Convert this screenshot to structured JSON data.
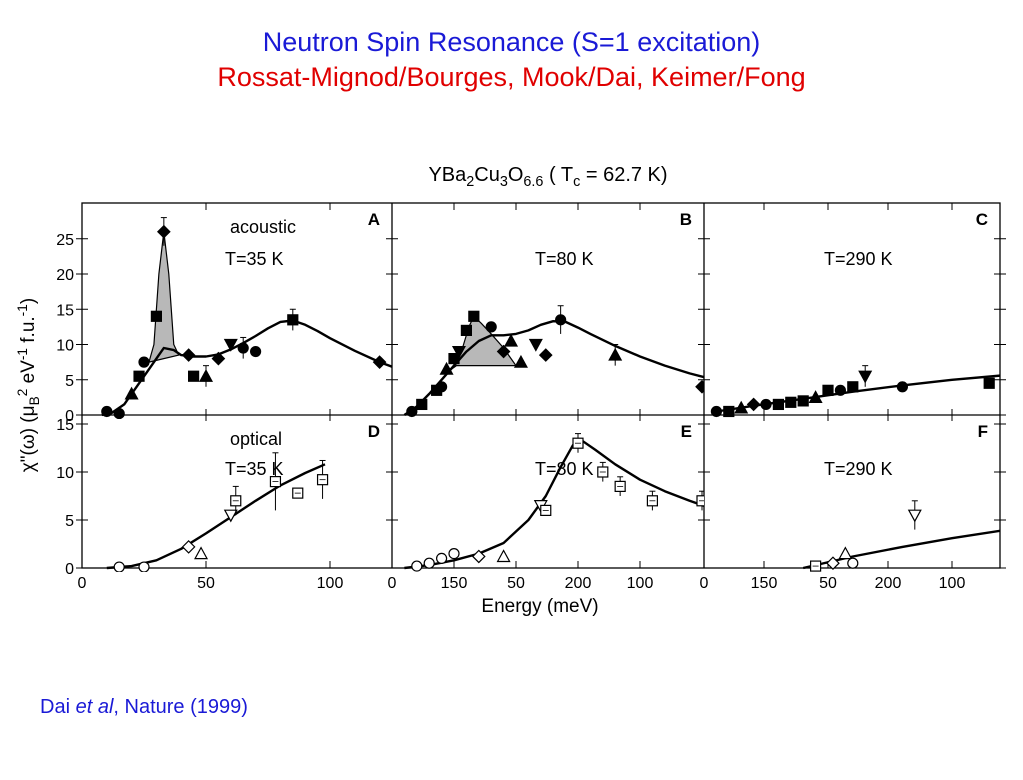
{
  "slide": {
    "title_line1": "Neutron Spin Resonance (S=1 excitation)",
    "title_line2": "Rossat-Mignod/Bourges, Mook/Dai, Keimer/Fong",
    "title_line1_color": "#1a1ad6",
    "title_line2_color": "#e00000",
    "citation_author": "Dai ",
    "citation_etal": "et al",
    "citation_rest": ", Nature (1999)",
    "citation_color": "#1a1ad6"
  },
  "figure": {
    "title_parts": [
      {
        "t": "YBa",
        "s": "n"
      },
      {
        "t": "2",
        "s": "sub"
      },
      {
        "t": "Cu",
        "s": "n"
      },
      {
        "t": "3",
        "s": "sub"
      },
      {
        "t": "O",
        "s": "n"
      },
      {
        "t": "6.6",
        "s": "sub"
      },
      {
        "t": " ( T",
        "s": "n"
      },
      {
        "t": "c",
        "s": "sub"
      },
      {
        "t": " = 62.7 K)",
        "s": "n"
      }
    ],
    "ylabel_parts": [
      {
        "t": "χ\"(ω)  (μ",
        "s": "n"
      },
      {
        "t": "B",
        "s": "sub"
      },
      {
        "t": "2",
        "s": "sup"
      },
      {
        "t": " eV",
        "s": "n"
      },
      {
        "t": "-1",
        "s": "sup"
      },
      {
        "t": " f.u.",
        "s": "n"
      },
      {
        "t": "-1",
        "s": "sup"
      },
      {
        "t": ")",
        "s": "n"
      }
    ],
    "xlabel": "Energy (meV)",
    "x_ticks": [
      "0",
      "50",
      "100",
      "150",
      "200",
      "0",
      "50",
      "100",
      "150",
      "200",
      "0",
      "50",
      "100",
      "150",
      "200",
      "250"
    ],
    "y_ticks_top": [
      "0",
      "5",
      "10",
      "15",
      "20",
      "25"
    ],
    "y_ticks_bottom": [
      "0",
      "5",
      "10",
      "15"
    ]
  },
  "chart_data": [
    {
      "panel": "A",
      "type": "scatter",
      "annotation": "acoustic",
      "temperature": "T=35 K",
      "xlim": [
        0,
        250
      ],
      "ylim": [
        0,
        28
      ],
      "points": [
        {
          "x": 10,
          "y": 0.5,
          "m": "circle",
          "fill": "filled"
        },
        {
          "x": 15,
          "y": 0.2,
          "m": "circle",
          "fill": "filled"
        },
        {
          "x": 20,
          "y": 3.0,
          "m": "triangle",
          "fill": "filled"
        },
        {
          "x": 23,
          "y": 5.5,
          "m": "square",
          "fill": "filled"
        },
        {
          "x": 25,
          "y": 7.5,
          "m": "circle",
          "fill": "filled"
        },
        {
          "x": 30,
          "y": 14.0,
          "m": "square",
          "fill": "filled"
        },
        {
          "x": 33,
          "y": 26.0,
          "m": "diamond",
          "fill": "filled",
          "err": 2
        },
        {
          "x": 43,
          "y": 8.5,
          "m": "diamond",
          "fill": "filled"
        },
        {
          "x": 45,
          "y": 5.5,
          "m": "square",
          "fill": "filled"
        },
        {
          "x": 50,
          "y": 5.5,
          "m": "triangle",
          "fill": "filled",
          "err": 1.5
        },
        {
          "x": 55,
          "y": 8.0,
          "m": "diamond",
          "fill": "filled"
        },
        {
          "x": 60,
          "y": 10.0,
          "m": "triangle-down",
          "fill": "filled"
        },
        {
          "x": 65,
          "y": 9.5,
          "m": "circle",
          "fill": "filled",
          "err": 1.5
        },
        {
          "x": 70,
          "y": 9.0,
          "m": "circle",
          "fill": "filled"
        },
        {
          "x": 85,
          "y": 13.5,
          "m": "square",
          "fill": "filled",
          "err": 1.5
        },
        {
          "x": 120,
          "y": 7.5,
          "m": "diamond",
          "fill": "filled"
        }
      ],
      "curve": [
        [
          8,
          0
        ],
        [
          12,
          0.3
        ],
        [
          17,
          1.5
        ],
        [
          22,
          4
        ],
        [
          27,
          6.5
        ],
        [
          30,
          8
        ],
        [
          33,
          9.5
        ],
        [
          37,
          9.2
        ],
        [
          40,
          8.5
        ],
        [
          45,
          8.3
        ],
        [
          50,
          8.3
        ],
        [
          55,
          8.6
        ],
        [
          60,
          9.3
        ],
        [
          65,
          10.2
        ],
        [
          70,
          11.2
        ],
        [
          75,
          12.3
        ],
        [
          80,
          13.2
        ],
        [
          85,
          13.4
        ],
        [
          90,
          12.8
        ],
        [
          95,
          11.9
        ],
        [
          100,
          10.9
        ],
        [
          110,
          9.1
        ],
        [
          120,
          7.5
        ],
        [
          130,
          6.2
        ],
        [
          140,
          5.1
        ],
        [
          150,
          4.2
        ],
        [
          160,
          3.5
        ],
        [
          170,
          3.0
        ],
        [
          180,
          2.6
        ],
        [
          190,
          2.3
        ],
        [
          200,
          2.1
        ],
        [
          210,
          1.9
        ],
        [
          220,
          1.8
        ],
        [
          230,
          1.7
        ],
        [
          240,
          1.6
        ]
      ],
      "resonance_peak": [
        [
          27,
          7.5
        ],
        [
          29,
          10
        ],
        [
          31,
          20
        ],
        [
          33,
          26
        ],
        [
          35,
          20
        ],
        [
          37,
          10
        ],
        [
          39,
          8.5
        ]
      ]
    },
    {
      "panel": "B",
      "type": "scatter",
      "temperature": "T=80 K",
      "xlim": [
        0,
        250
      ],
      "ylim": [
        0,
        28
      ],
      "points": [
        {
          "x": 8,
          "y": 0.5,
          "m": "circle",
          "fill": "filled"
        },
        {
          "x": 12,
          "y": 1.5,
          "m": "square",
          "fill": "filled"
        },
        {
          "x": 18,
          "y": 3.5,
          "m": "square",
          "fill": "filled"
        },
        {
          "x": 20,
          "y": 4.0,
          "m": "circle",
          "fill": "filled"
        },
        {
          "x": 22,
          "y": 6.5,
          "m": "triangle",
          "fill": "filled"
        },
        {
          "x": 25,
          "y": 8.0,
          "m": "square",
          "fill": "filled"
        },
        {
          "x": 27,
          "y": 9.0,
          "m": "triangle-down",
          "fill": "filled"
        },
        {
          "x": 30,
          "y": 12.0,
          "m": "square",
          "fill": "filled"
        },
        {
          "x": 33,
          "y": 14.0,
          "m": "square",
          "fill": "filled"
        },
        {
          "x": 40,
          "y": 12.5,
          "m": "circle",
          "fill": "filled"
        },
        {
          "x": 45,
          "y": 9.0,
          "m": "diamond",
          "fill": "filled"
        },
        {
          "x": 48,
          "y": 10.5,
          "m": "triangle",
          "fill": "filled"
        },
        {
          "x": 52,
          "y": 7.5,
          "m": "triangle",
          "fill": "filled"
        },
        {
          "x": 58,
          "y": 10.0,
          "m": "triangle-down",
          "fill": "filled"
        },
        {
          "x": 62,
          "y": 8.5,
          "m": "diamond",
          "fill": "filled"
        },
        {
          "x": 68,
          "y": 13.5,
          "m": "circle",
          "fill": "filled",
          "err": 2
        },
        {
          "x": 90,
          "y": 8.5,
          "m": "triangle",
          "fill": "filled",
          "err": 1.5
        },
        {
          "x": 125,
          "y": 4.0,
          "m": "diamond",
          "fill": "filled"
        },
        {
          "x": 180,
          "y": 3.5,
          "m": "triangle",
          "fill": "filled"
        },
        {
          "x": 220,
          "y": 1.8,
          "m": "triangle",
          "fill": "filled"
        }
      ],
      "curve": [
        [
          5,
          0
        ],
        [
          10,
          1.2
        ],
        [
          15,
          3
        ],
        [
          20,
          5
        ],
        [
          25,
          7
        ],
        [
          30,
          9
        ],
        [
          35,
          10.5
        ],
        [
          40,
          11.3
        ],
        [
          45,
          11.3
        ],
        [
          50,
          11.5
        ],
        [
          55,
          12
        ],
        [
          60,
          12.8
        ],
        [
          65,
          13.3
        ],
        [
          70,
          13.2
        ],
        [
          75,
          12.4
        ],
        [
          80,
          11.5
        ],
        [
          90,
          9.8
        ],
        [
          100,
          8.3
        ],
        [
          110,
          7.0
        ],
        [
          120,
          5.9
        ],
        [
          130,
          5.0
        ],
        [
          140,
          4.3
        ],
        [
          150,
          3.7
        ],
        [
          160,
          3.2
        ],
        [
          170,
          2.8
        ],
        [
          180,
          2.5
        ],
        [
          190,
          2.2
        ],
        [
          200,
          2.0
        ],
        [
          210,
          1.9
        ],
        [
          220,
          1.8
        ],
        [
          230,
          1.7
        ],
        [
          240,
          1.7
        ]
      ],
      "resonance_peak": [
        [
          24,
          6.5
        ],
        [
          28,
          9
        ],
        [
          31,
          12.5
        ],
        [
          33,
          14
        ],
        [
          36,
          13
        ],
        [
          40,
          11.5
        ],
        [
          45,
          9.5
        ],
        [
          50,
          7
        ],
        [
          26,
          7
        ]
      ]
    },
    {
      "panel": "C",
      "type": "scatter",
      "temperature": "T=290 K",
      "xlim": [
        0,
        250
      ],
      "ylim": [
        0,
        28
      ],
      "points": [
        {
          "x": 5,
          "y": 0.5,
          "m": "circle",
          "fill": "filled"
        },
        {
          "x": 10,
          "y": 0.5,
          "m": "square",
          "fill": "filled"
        },
        {
          "x": 15,
          "y": 1.0,
          "m": "triangle",
          "fill": "filled"
        },
        {
          "x": 20,
          "y": 1.5,
          "m": "diamond",
          "fill": "filled"
        },
        {
          "x": 25,
          "y": 1.5,
          "m": "circle",
          "fill": "filled"
        },
        {
          "x": 30,
          "y": 1.5,
          "m": "square",
          "fill": "filled"
        },
        {
          "x": 35,
          "y": 1.8,
          "m": "square",
          "fill": "filled"
        },
        {
          "x": 40,
          "y": 2.0,
          "m": "square",
          "fill": "filled"
        },
        {
          "x": 45,
          "y": 2.5,
          "m": "triangle",
          "fill": "filled"
        },
        {
          "x": 50,
          "y": 3.5,
          "m": "square",
          "fill": "filled"
        },
        {
          "x": 55,
          "y": 3.5,
          "m": "circle",
          "fill": "filled"
        },
        {
          "x": 60,
          "y": 4.0,
          "m": "square",
          "fill": "filled"
        },
        {
          "x": 65,
          "y": 5.5,
          "m": "triangle-down",
          "fill": "filled",
          "err": 1.5
        },
        {
          "x": 80,
          "y": 4.0,
          "m": "circle",
          "fill": "filled"
        },
        {
          "x": 115,
          "y": 4.5,
          "m": "square",
          "fill": "filled"
        }
      ],
      "curve": [
        [
          5,
          0.5
        ],
        [
          20,
          1.3
        ],
        [
          40,
          2.3
        ],
        [
          60,
          3.3
        ],
        [
          80,
          4.2
        ],
        [
          100,
          5.0
        ],
        [
          120,
          5.6
        ],
        [
          135,
          6.0
        ]
      ]
    },
    {
      "panel": "D",
      "type": "scatter",
      "annotation": "optical",
      "temperature": "T=35 K",
      "xlim": [
        0,
        250
      ],
      "ylim": [
        0,
        17
      ],
      "points": [
        {
          "x": 15,
          "y": 0.1,
          "m": "circle",
          "fill": "open"
        },
        {
          "x": 25,
          "y": 0.1,
          "m": "circle",
          "fill": "open"
        },
        {
          "x": 43,
          "y": 2.2,
          "m": "diamond",
          "fill": "open"
        },
        {
          "x": 48,
          "y": 1.5,
          "m": "triangle",
          "fill": "open"
        },
        {
          "x": 60,
          "y": 5.5,
          "m": "triangle-down",
          "fill": "open"
        },
        {
          "x": 62,
          "y": 7.0,
          "m": "square",
          "fill": "open",
          "err": 1.5
        },
        {
          "x": 78,
          "y": 9.0,
          "m": "square",
          "fill": "open",
          "err": 3
        },
        {
          "x": 87,
          "y": 7.8,
          "m": "square",
          "fill": "open"
        },
        {
          "x": 97,
          "y": 9.2,
          "m": "square",
          "fill": "open",
          "err": 2
        }
      ],
      "curve": [
        [
          10,
          0
        ],
        [
          20,
          0.2
        ],
        [
          30,
          0.8
        ],
        [
          40,
          2.0
        ],
        [
          50,
          3.6
        ],
        [
          60,
          5.3
        ],
        [
          70,
          7.0
        ],
        [
          80,
          8.6
        ],
        [
          90,
          9.9
        ],
        [
          98,
          10.8
        ]
      ]
    },
    {
      "panel": "E",
      "type": "scatter",
      "temperature": "T=80 K",
      "xlim": [
        0,
        250
      ],
      "ylim": [
        0,
        17
      ],
      "points": [
        {
          "x": 10,
          "y": 0.2,
          "m": "circle",
          "fill": "open"
        },
        {
          "x": 15,
          "y": 0.5,
          "m": "circle",
          "fill": "open"
        },
        {
          "x": 20,
          "y": 1.0,
          "m": "circle",
          "fill": "open"
        },
        {
          "x": 25,
          "y": 1.5,
          "m": "circle",
          "fill": "open"
        },
        {
          "x": 35,
          "y": 1.2,
          "m": "diamond",
          "fill": "open"
        },
        {
          "x": 45,
          "y": 1.2,
          "m": "triangle",
          "fill": "open"
        },
        {
          "x": 60,
          "y": 6.5,
          "m": "triangle-down",
          "fill": "open"
        },
        {
          "x": 62,
          "y": 6.0,
          "m": "square",
          "fill": "open"
        },
        {
          "x": 75,
          "y": 13.0,
          "m": "square",
          "fill": "open",
          "err": 1
        },
        {
          "x": 85,
          "y": 10.0,
          "m": "square",
          "fill": "open",
          "err": 1
        },
        {
          "x": 92,
          "y": 8.5,
          "m": "square",
          "fill": "open",
          "err": 1
        },
        {
          "x": 105,
          "y": 7.0,
          "m": "square",
          "fill": "open",
          "err": 1
        },
        {
          "x": 125,
          "y": 7.0,
          "m": "square",
          "fill": "open",
          "err": 1
        },
        {
          "x": 150,
          "y": 4.5,
          "m": "square",
          "fill": "open",
          "err": 1
        }
      ],
      "curve": [
        [
          5,
          0
        ],
        [
          15,
          0.3
        ],
        [
          25,
          0.8
        ],
        [
          35,
          1.5
        ],
        [
          45,
          2.6
        ],
        [
          55,
          5
        ],
        [
          62,
          7.5
        ],
        [
          68,
          10.5
        ],
        [
          73,
          12.8
        ],
        [
          77,
          13.2
        ],
        [
          82,
          12.3
        ],
        [
          90,
          10.8
        ],
        [
          100,
          9.2
        ],
        [
          110,
          8.0
        ],
        [
          120,
          7.0
        ],
        [
          130,
          6.1
        ],
        [
          140,
          5.3
        ],
        [
          150,
          4.6
        ],
        [
          160,
          4.0
        ],
        [
          170,
          3.4
        ],
        [
          180,
          2.9
        ],
        [
          190,
          2.5
        ],
        [
          200,
          2.2
        ],
        [
          210,
          2.0
        ],
        [
          220,
          1.9
        ],
        [
          230,
          1.8
        ],
        [
          240,
          1.75
        ]
      ]
    },
    {
      "panel": "F",
      "type": "scatter",
      "temperature": "T=290 K",
      "xlim": [
        0,
        250
      ],
      "ylim": [
        0,
        17
      ],
      "points": [
        {
          "x": 45,
          "y": 0.2,
          "m": "square",
          "fill": "open"
        },
        {
          "x": 52,
          "y": 0.5,
          "m": "diamond",
          "fill": "open"
        },
        {
          "x": 57,
          "y": 1.5,
          "m": "triangle",
          "fill": "open"
        },
        {
          "x": 60,
          "y": 0.5,
          "m": "circle",
          "fill": "open"
        },
        {
          "x": 85,
          "y": 5.5,
          "m": "triangle-down",
          "fill": "open",
          "err": 1.5
        }
      ],
      "curve": [
        [
          40,
          0
        ],
        [
          60,
          1.2
        ],
        [
          80,
          2.2
        ],
        [
          100,
          3.1
        ],
        [
          120,
          3.9
        ],
        [
          140,
          4.8
        ]
      ]
    }
  ]
}
